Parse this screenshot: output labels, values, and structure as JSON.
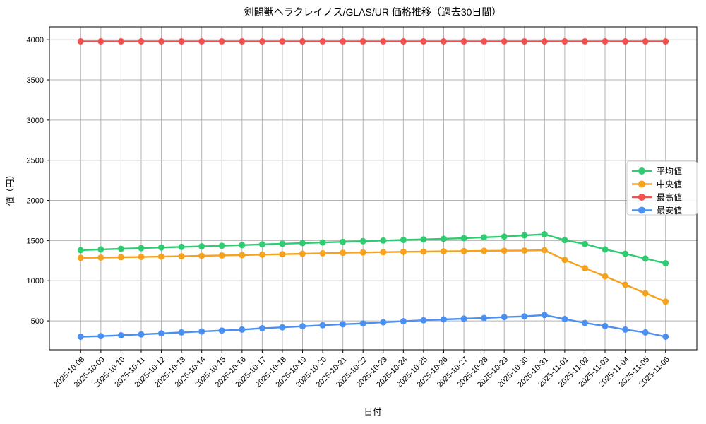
{
  "chart_data": {
    "type": "line",
    "title": "剣闘獣ヘラクレイノス/GLAS/UR 価格推移（過去30日間）",
    "xlabel": "日付",
    "ylabel": "値（円）",
    "grid": true,
    "legend_position": "center right",
    "ylim": [
      140,
      4160
    ],
    "yticks": [
      500,
      1000,
      1500,
      2000,
      2500,
      3000,
      3500,
      4000
    ],
    "x": [
      "2025-10-08",
      "2025-10-09",
      "2025-10-10",
      "2025-10-11",
      "2025-10-12",
      "2025-10-13",
      "2025-10-14",
      "2025-10-15",
      "2025-10-16",
      "2025-10-17",
      "2025-10-18",
      "2025-10-19",
      "2025-10-20",
      "2025-10-21",
      "2025-10-22",
      "2025-10-23",
      "2025-10-24",
      "2025-10-25",
      "2025-10-26",
      "2025-10-27",
      "2025-10-28",
      "2025-10-29",
      "2025-10-30",
      "2025-10-31",
      "2025-11-01",
      "2025-11-02",
      "2025-11-03",
      "2025-11-04",
      "2025-11-05",
      "2025-11-06"
    ],
    "series": [
      {
        "name": "平均値",
        "key": "average",
        "color": "#2ecc71",
        "values": [
          1380,
          1390,
          1398,
          1406,
          1414,
          1421,
          1428,
          1436,
          1444,
          1452,
          1460,
          1468,
          1476,
          1484,
          1492,
          1500,
          1508,
          1515,
          1522,
          1530,
          1540,
          1550,
          1565,
          1578,
          1505,
          1458,
          1390,
          1336,
          1276,
          1218
        ]
      },
      {
        "name": "中央値",
        "key": "median",
        "color": "#f6a21c",
        "values": [
          1285,
          1288,
          1292,
          1296,
          1300,
          1305,
          1310,
          1315,
          1320,
          1325,
          1330,
          1336,
          1342,
          1348,
          1352,
          1356,
          1360,
          1363,
          1366,
          1369,
          1372,
          1374,
          1376,
          1380,
          1260,
          1155,
          1055,
          950,
          845,
          740
        ]
      },
      {
        "name": "最高値",
        "key": "max",
        "color": "#f35050",
        "values": [
          3980,
          3980,
          3980,
          3980,
          3980,
          3980,
          3980,
          3980,
          3980,
          3980,
          3980,
          3980,
          3980,
          3980,
          3980,
          3980,
          3980,
          3980,
          3980,
          3980,
          3980,
          3980,
          3980,
          3980,
          3980,
          3980,
          3980,
          3980,
          3980,
          3980
        ]
      },
      {
        "name": "最安値",
        "key": "min",
        "color": "#4a90f2",
        "values": [
          303,
          310,
          320,
          332,
          344,
          356,
          368,
          380,
          392,
          408,
          420,
          433,
          445,
          458,
          468,
          482,
          495,
          508,
          518,
          528,
          536,
          547,
          556,
          573,
          523,
          474,
          436,
          392,
          356,
          303
        ]
      }
    ]
  },
  "style": {
    "grid_color": "#b3b3b3",
    "spine_color": "#000000",
    "legend_border": "#cccccc",
    "background": "#ffffff"
  }
}
